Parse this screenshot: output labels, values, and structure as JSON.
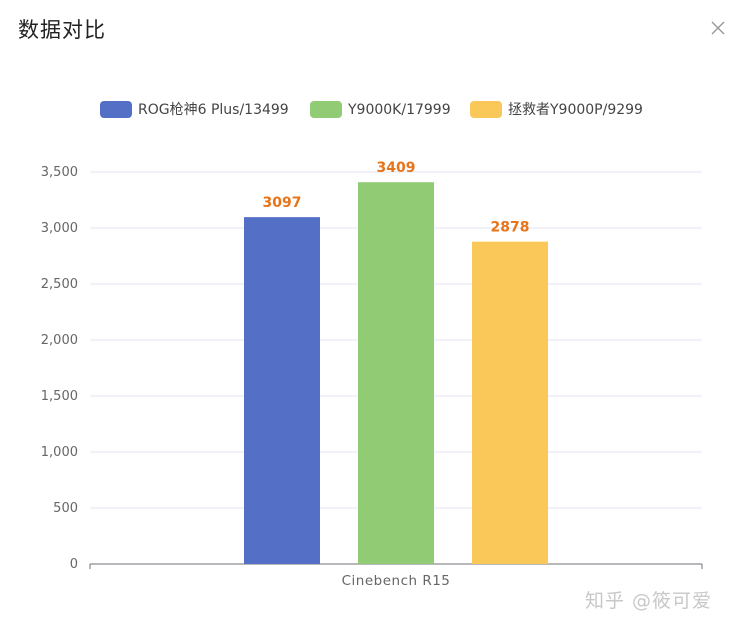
{
  "window": {
    "title": "数据对比",
    "close_icon": "close-icon",
    "watermark": "知乎 @筱可爱"
  },
  "colors": {
    "series_1": "#5470c6",
    "series_2": "#91cc75",
    "series_3": "#fac858",
    "value_label": "#e8741a",
    "axis": "#6e7079",
    "grid": "#e0e6f1"
  },
  "chart_data": {
    "type": "bar",
    "title": "",
    "xlabel": "",
    "ylabel": "",
    "categories": [
      "Cinebench R15"
    ],
    "series": [
      {
        "name": "ROG枪神6  Plus/13499",
        "values": [
          3097
        ]
      },
      {
        "name": "Y9000K/17999",
        "values": [
          3409
        ]
      },
      {
        "name": "拯救者Y9000P/9299",
        "values": [
          2878
        ]
      }
    ],
    "ylim": [
      0,
      3500
    ],
    "yticks": [
      0,
      500,
      1000,
      1500,
      2000,
      2500,
      3000,
      3500
    ],
    "ytick_labels": [
      "0",
      "500",
      "1,000",
      "1,500",
      "2,000",
      "2,500",
      "3,000",
      "3,500"
    ],
    "data_labels": [
      "3097",
      "3409",
      "2878"
    ],
    "grid": true,
    "legend_position": "top"
  }
}
